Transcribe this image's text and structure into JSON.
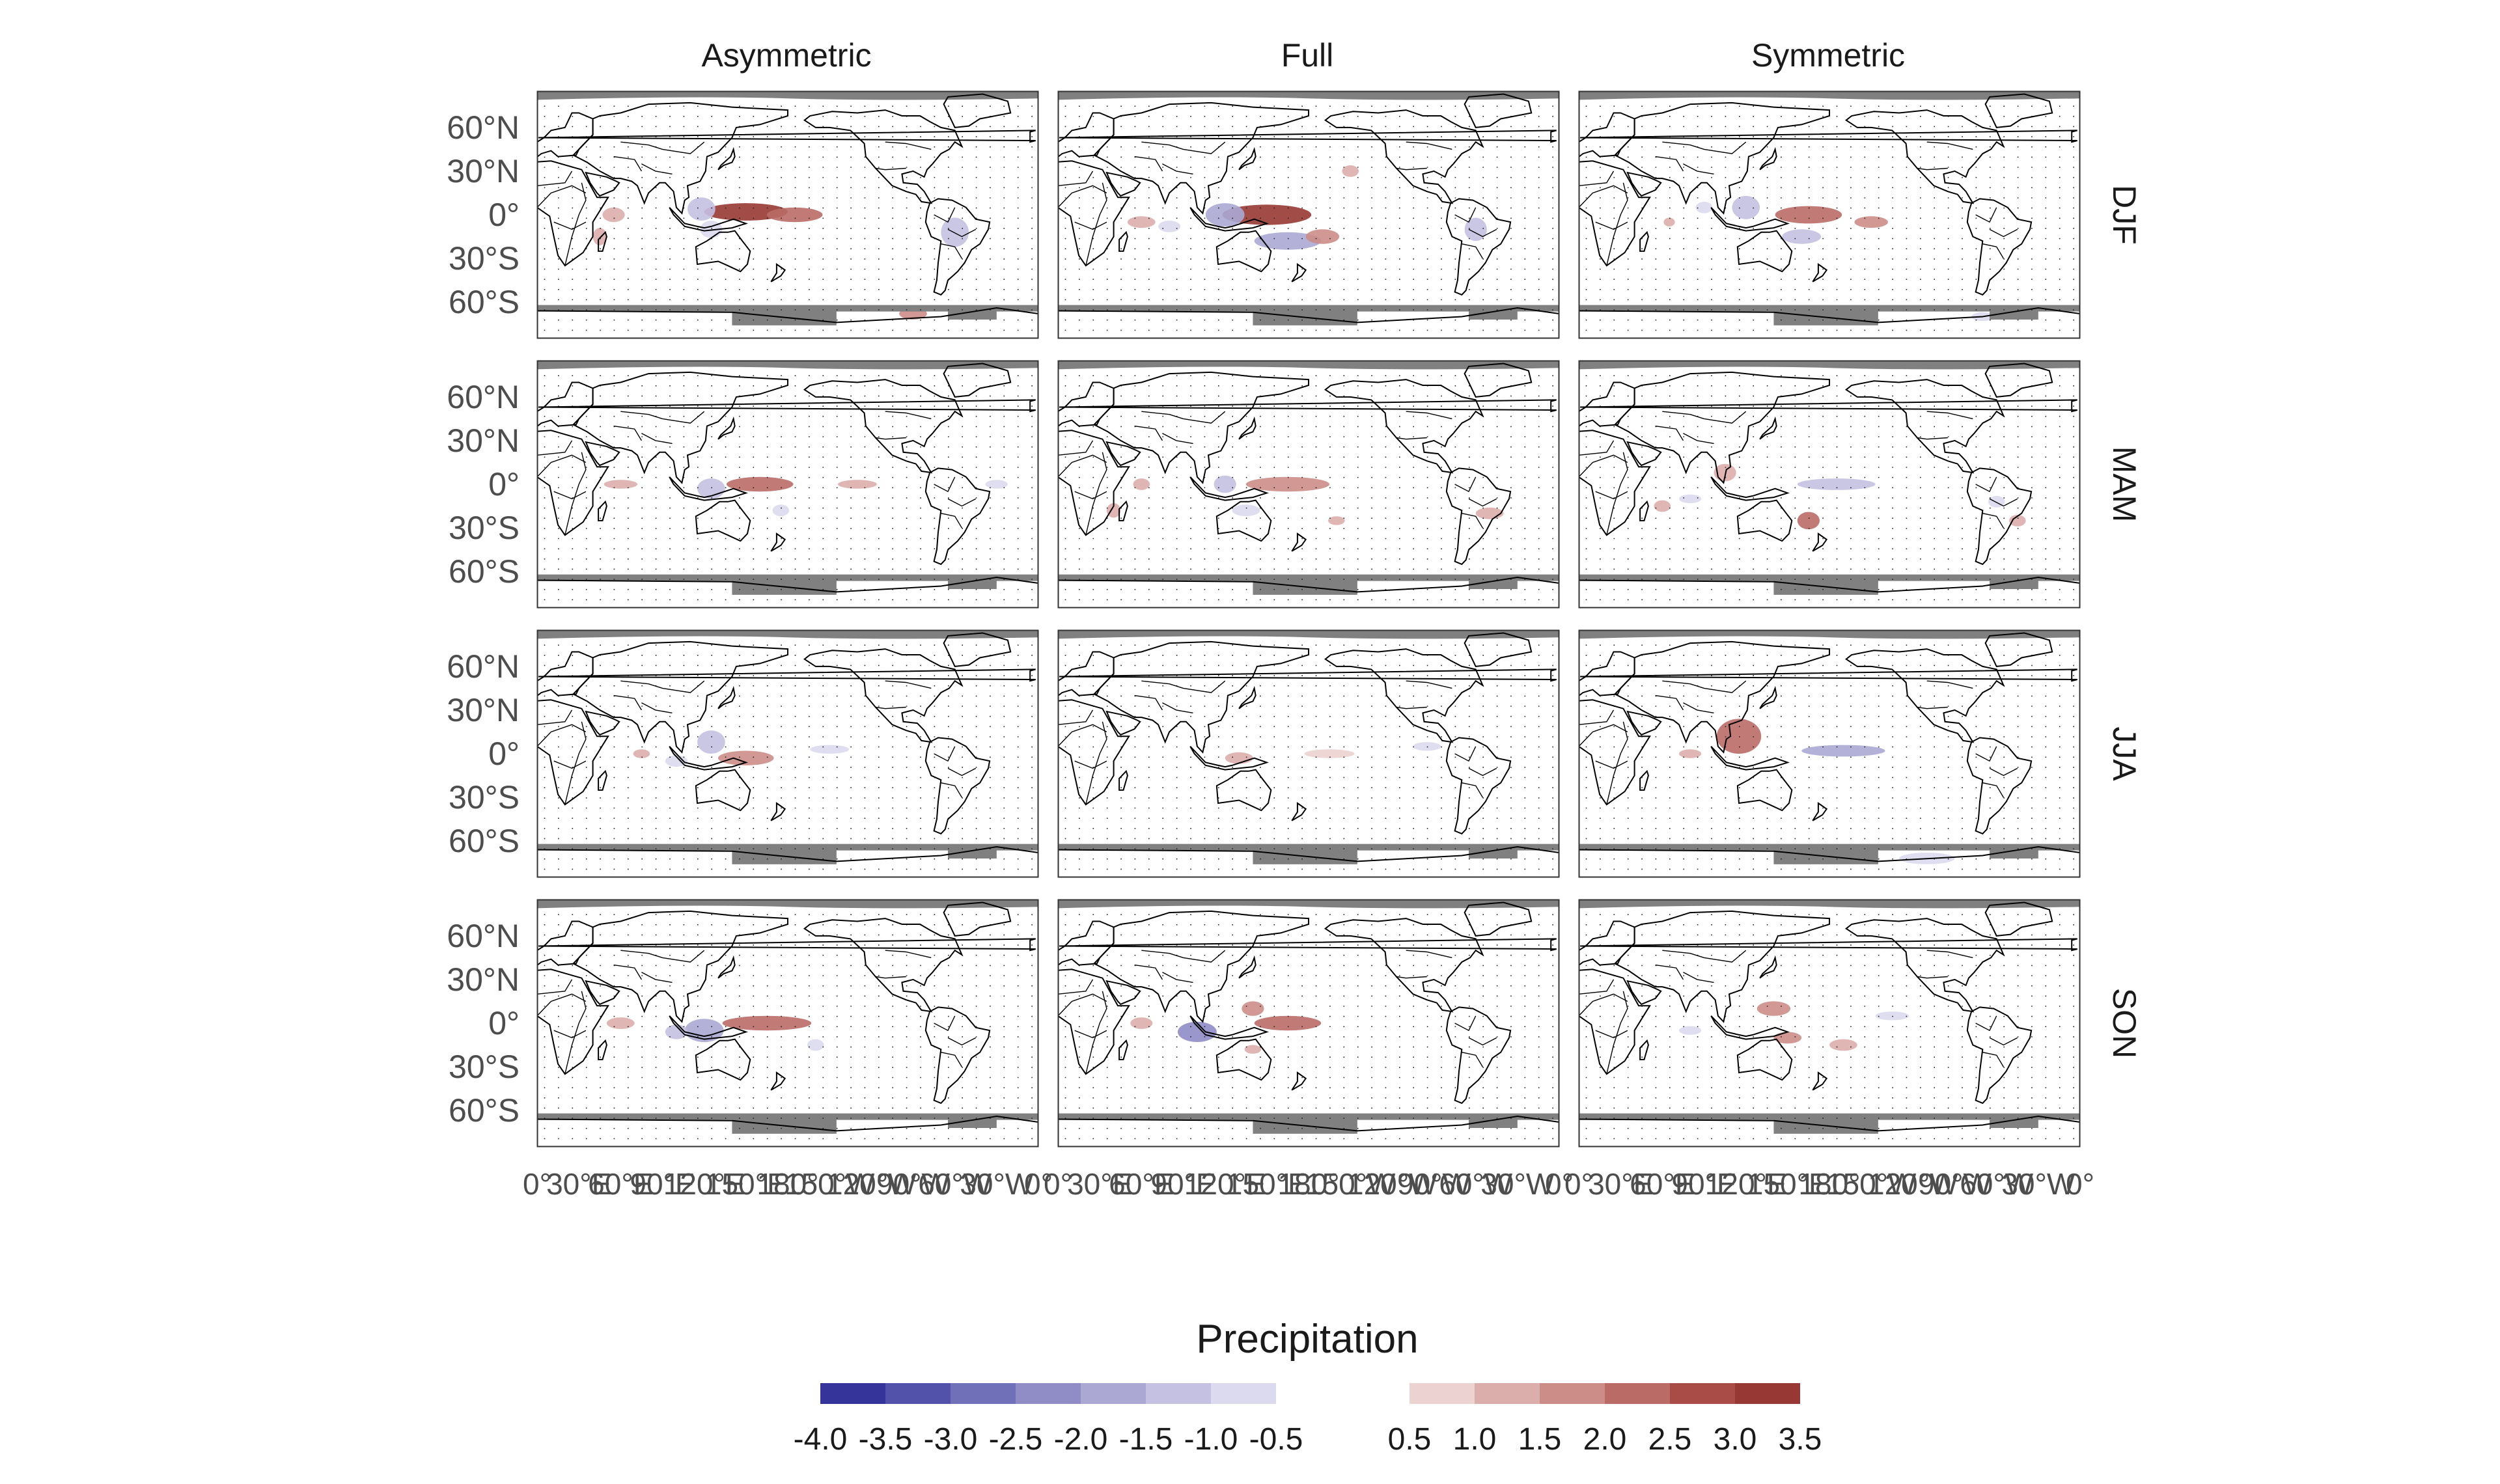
{
  "chart_data": {
    "type": "heatmap",
    "legend_title": "Precipitation",
    "columns": [
      "Asymmetric",
      "Full",
      "Symmetric"
    ],
    "rows": [
      "DJF",
      "MAM",
      "JJA",
      "SON"
    ],
    "y_ticks": [
      "60°N",
      "30°N",
      "0°",
      "30°S",
      "60°S"
    ],
    "x_ticks": [
      "0°",
      "30°E",
      "60°E",
      "90°E",
      "120°E",
      "150°E",
      "180°",
      "150°W",
      "120°W",
      "90°W",
      "60°W",
      "30°W",
      "0°"
    ],
    "negative_bins": {
      "labels": [
        "-4.0",
        "-3.5",
        "-3.0",
        "-2.5",
        "-2.0",
        "-1.5",
        "-1.0",
        "-0.5"
      ],
      "colors": [
        "#34349a",
        "#5252aa",
        "#7070b8",
        "#8f8cc6",
        "#ab a8d4",
        "#c4c1e2",
        "#dcdaef"
      ]
    },
    "positive_bins": {
      "labels": [
        "0.5",
        "1.0",
        "1.5",
        "2.0",
        "2.5",
        "3.0",
        "3.5"
      ],
      "colors": [
        "#ecd2d0",
        "#dcaeab",
        "#cc8d88",
        "#ba6b66",
        "#a94c47",
        "#983834"
      ]
    },
    "colors": {
      "land_mask": "#808080",
      "coast": "#000000",
      "panel_border": "#333333"
    },
    "anomalies": [
      [
        [
          {
            "lon": 150,
            "lat": 2,
            "value": 3.0,
            "rx": 30,
            "ry": 6
          },
          {
            "lon": 185,
            "lat": 0,
            "value": 2.0,
            "rx": 20,
            "ry": 5
          },
          {
            "lon": 118,
            "lat": 4,
            "value": -1.5,
            "rx": 10,
            "ry": 8
          },
          {
            "lon": 125,
            "lat": -10,
            "value": -1.0,
            "rx": 8,
            "ry": 6
          },
          {
            "lon": 300,
            "lat": -12,
            "value": -1.5,
            "rx": 10,
            "ry": 10
          },
          {
            "lon": 55,
            "lat": 0,
            "value": 1.0,
            "rx": 8,
            "ry": 5
          },
          {
            "lon": 45,
            "lat": -15,
            "value": 1.0,
            "rx": 5,
            "ry": 6
          },
          {
            "lon": 270,
            "lat": -68,
            "value": 1.5,
            "rx": 10,
            "ry": 4
          }
        ],
        [
          {
            "lon": 150,
            "lat": 0,
            "value": 3.5,
            "rx": 32,
            "ry": 7
          },
          {
            "lon": 120,
            "lat": 0,
            "value": -2.0,
            "rx": 14,
            "ry": 8
          },
          {
            "lon": 165,
            "lat": -18,
            "value": -2.0,
            "rx": 24,
            "ry": 6
          },
          {
            "lon": 190,
            "lat": -15,
            "value": 1.5,
            "rx": 12,
            "ry": 5
          },
          {
            "lon": 300,
            "lat": -10,
            "value": -1.5,
            "rx": 8,
            "ry": 8
          },
          {
            "lon": 60,
            "lat": -5,
            "value": 1.0,
            "rx": 10,
            "ry": 4
          },
          {
            "lon": 80,
            "lat": -8,
            "value": -1.0,
            "rx": 8,
            "ry": 4
          },
          {
            "lon": 210,
            "lat": 30,
            "value": 1.0,
            "rx": 6,
            "ry": 4
          }
        ],
        [
          {
            "lon": 165,
            "lat": 0,
            "value": 2.0,
            "rx": 24,
            "ry": 6
          },
          {
            "lon": 120,
            "lat": 5,
            "value": -1.5,
            "rx": 10,
            "ry": 8
          },
          {
            "lon": 160,
            "lat": -15,
            "value": -1.5,
            "rx": 14,
            "ry": 5
          },
          {
            "lon": 90,
            "lat": 5,
            "value": -1.0,
            "rx": 6,
            "ry": 4
          },
          {
            "lon": 65,
            "lat": -5,
            "value": 1.0,
            "rx": 4,
            "ry": 3
          },
          {
            "lon": 210,
            "lat": -5,
            "value": 1.5,
            "rx": 12,
            "ry": 4
          },
          {
            "lon": 290,
            "lat": -70,
            "value": -1.0,
            "rx": 8,
            "ry": 3
          }
        ]
      ],
      [
        [
          {
            "lon": 160,
            "lat": 0,
            "value": 2.0,
            "rx": 24,
            "ry": 5
          },
          {
            "lon": 125,
            "lat": -3,
            "value": -1.5,
            "rx": 10,
            "ry": 7
          },
          {
            "lon": 60,
            "lat": 0,
            "value": 1.0,
            "rx": 12,
            "ry": 3
          },
          {
            "lon": 175,
            "lat": -18,
            "value": -1.0,
            "rx": 6,
            "ry": 4
          },
          {
            "lon": 230,
            "lat": 0,
            "value": 1.0,
            "rx": 14,
            "ry": 3
          },
          {
            "lon": 330,
            "lat": 0,
            "value": -1.0,
            "rx": 8,
            "ry": 3
          }
        ],
        [
          {
            "lon": 165,
            "lat": 0,
            "value": 1.5,
            "rx": 30,
            "ry": 5
          },
          {
            "lon": 120,
            "lat": 0,
            "value": -1.5,
            "rx": 8,
            "ry": 6
          },
          {
            "lon": 135,
            "lat": -18,
            "value": -1.0,
            "rx": 10,
            "ry": 4
          },
          {
            "lon": 60,
            "lat": 0,
            "value": 1.0,
            "rx": 6,
            "ry": 4
          },
          {
            "lon": 40,
            "lat": -18,
            "value": 1.0,
            "rx": 5,
            "ry": 5
          },
          {
            "lon": 310,
            "lat": -20,
            "value": 1.0,
            "rx": 10,
            "ry": 4
          },
          {
            "lon": 200,
            "lat": -25,
            "value": 1.0,
            "rx": 6,
            "ry": 3
          }
        ],
        [
          {
            "lon": 185,
            "lat": 0,
            "value": -1.5,
            "rx": 28,
            "ry": 4
          },
          {
            "lon": 165,
            "lat": -25,
            "value": 2.0,
            "rx": 8,
            "ry": 6
          },
          {
            "lon": 105,
            "lat": 8,
            "value": 1.0,
            "rx": 8,
            "ry": 6
          },
          {
            "lon": 60,
            "lat": -15,
            "value": 1.0,
            "rx": 6,
            "ry": 4
          },
          {
            "lon": 80,
            "lat": -10,
            "value": -1.0,
            "rx": 8,
            "ry": 3
          },
          {
            "lon": 315,
            "lat": -25,
            "value": 1.0,
            "rx": 6,
            "ry": 4
          },
          {
            "lon": 300,
            "lat": -12,
            "value": -1.0,
            "rx": 6,
            "ry": 4
          }
        ]
      ],
      [
        [
          {
            "lon": 150,
            "lat": -3,
            "value": 1.5,
            "rx": 20,
            "ry": 5
          },
          {
            "lon": 125,
            "lat": 8,
            "value": -1.5,
            "rx": 10,
            "ry": 8
          },
          {
            "lon": 100,
            "lat": -5,
            "value": -1.0,
            "rx": 8,
            "ry": 4
          },
          {
            "lon": 75,
            "lat": 0,
            "value": 1.0,
            "rx": 6,
            "ry": 3
          },
          {
            "lon": 210,
            "lat": 3,
            "value": -1.0,
            "rx": 14,
            "ry": 3
          }
        ],
        [
          {
            "lon": 130,
            "lat": -3,
            "value": 1.0,
            "rx": 10,
            "ry": 4
          },
          {
            "lon": 265,
            "lat": 5,
            "value": -1.0,
            "rx": 10,
            "ry": 3
          },
          {
            "lon": 195,
            "lat": 0,
            "value": 0.5,
            "rx": 18,
            "ry": 3
          }
        ],
        [
          {
            "lon": 115,
            "lat": 12,
            "value": 2.0,
            "rx": 16,
            "ry": 12
          },
          {
            "lon": 190,
            "lat": 2,
            "value": -2.0,
            "rx": 30,
            "ry": 4
          },
          {
            "lon": 250,
            "lat": -72,
            "value": -1.0,
            "rx": 20,
            "ry": 4
          },
          {
            "lon": 80,
            "lat": 0,
            "value": 1.0,
            "rx": 8,
            "ry": 3
          }
        ]
      ],
      [
        [
          {
            "lon": 165,
            "lat": 0,
            "value": 2.0,
            "rx": 32,
            "ry": 5
          },
          {
            "lon": 120,
            "lat": -5,
            "value": -2.0,
            "rx": 14,
            "ry": 8
          },
          {
            "lon": 100,
            "lat": -6,
            "value": -1.5,
            "rx": 8,
            "ry": 5
          },
          {
            "lon": 60,
            "lat": 0,
            "value": 1.0,
            "rx": 10,
            "ry": 4
          },
          {
            "lon": 200,
            "lat": -15,
            "value": -1.0,
            "rx": 6,
            "ry": 4
          }
        ],
        [
          {
            "lon": 165,
            "lat": 0,
            "value": 2.0,
            "rx": 24,
            "ry": 5
          },
          {
            "lon": 100,
            "lat": -6,
            "value": -2.5,
            "rx": 14,
            "ry": 7
          },
          {
            "lon": 140,
            "lat": 10,
            "value": 1.5,
            "rx": 8,
            "ry": 5
          },
          {
            "lon": 60,
            "lat": 0,
            "value": 1.0,
            "rx": 8,
            "ry": 4
          },
          {
            "lon": 140,
            "lat": -18,
            "value": 1.0,
            "rx": 6,
            "ry": 3
          }
        ],
        [
          {
            "lon": 140,
            "lat": 10,
            "value": 1.5,
            "rx": 12,
            "ry": 5
          },
          {
            "lon": 150,
            "lat": -10,
            "value": 1.5,
            "rx": 10,
            "ry": 4
          },
          {
            "lon": 190,
            "lat": -15,
            "value": 1.0,
            "rx": 10,
            "ry": 4
          },
          {
            "lon": 80,
            "lat": -5,
            "value": -1.0,
            "rx": 8,
            "ry": 3
          },
          {
            "lon": 225,
            "lat": 5,
            "value": -1.0,
            "rx": 12,
            "ry": 3
          }
        ]
      ]
    ]
  }
}
